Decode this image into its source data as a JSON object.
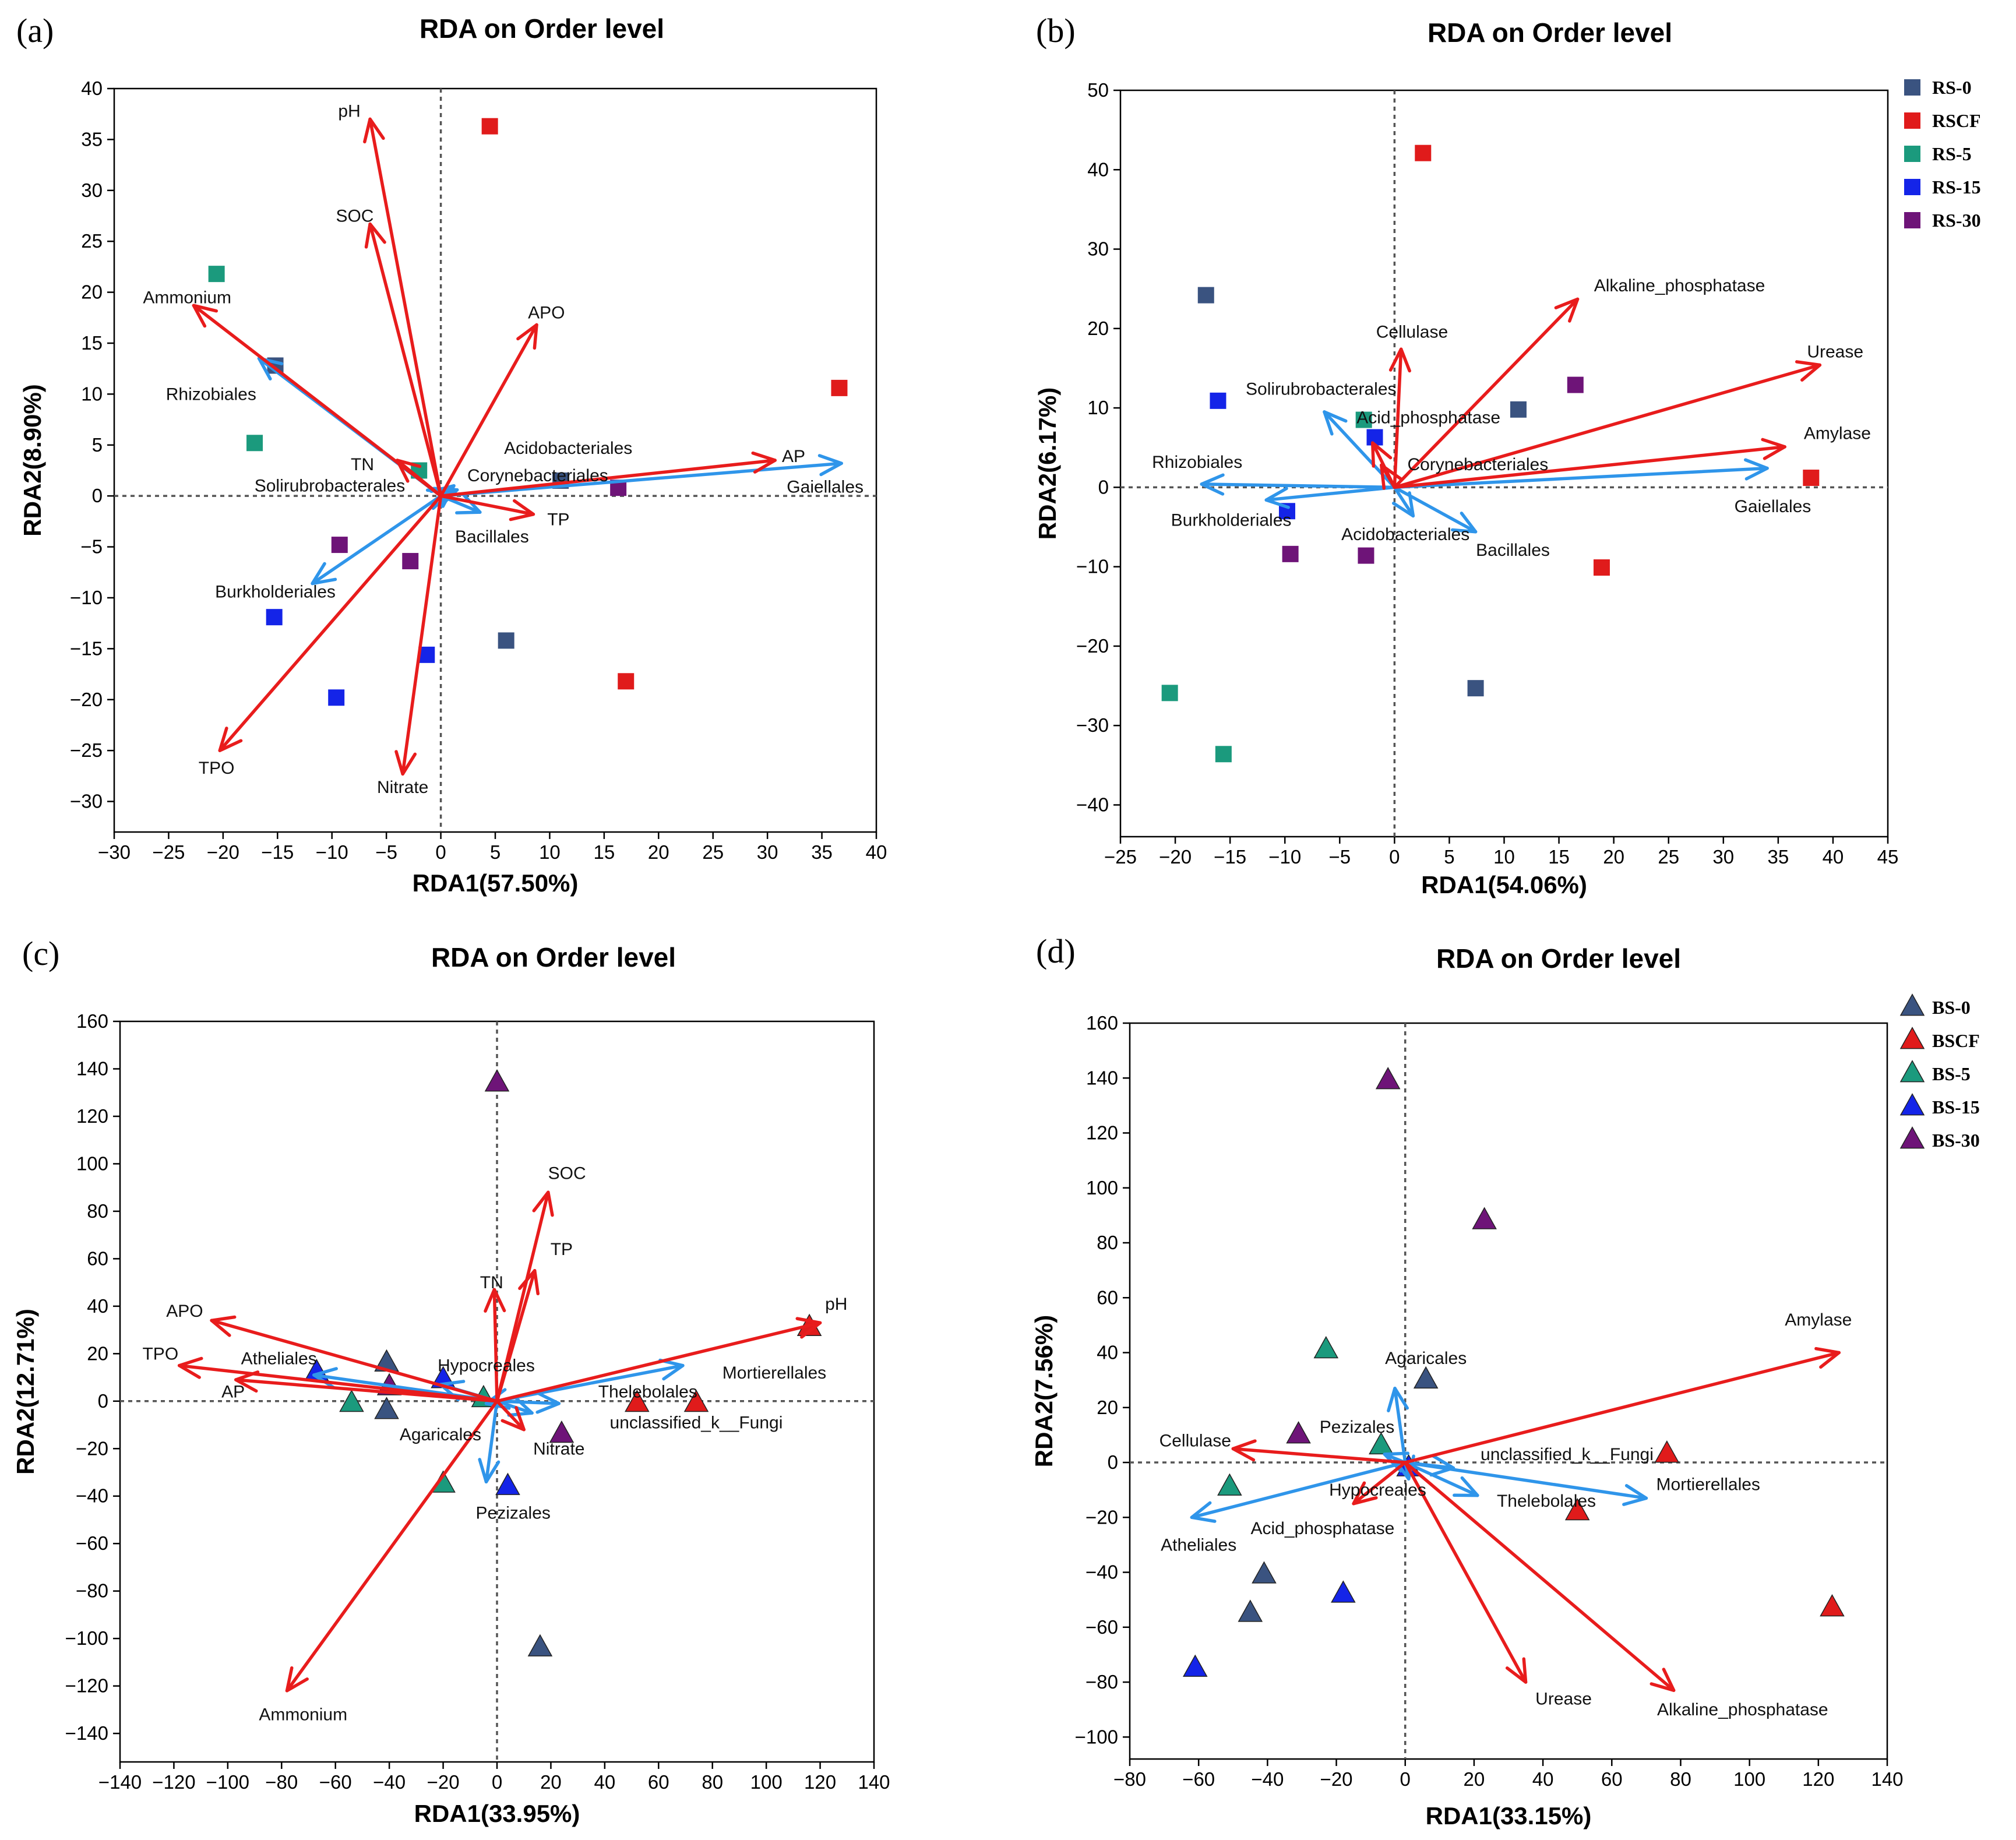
{
  "colors": {
    "env_arrow": "#e81c1c",
    "taxa_arrow": "#2f95ea",
    "g0": "#3a5380",
    "gCF": "#e01b1b",
    "g5": "#1b9a7d",
    "g15": "#1424e8",
    "g30": "#6e1478"
  },
  "chart_data": [
    {
      "type": "scatter",
      "panel_label": "(a)",
      "title": "RDA on Order level",
      "xlabel": "RDA1(57.50%)",
      "ylabel": "RDA2(8.90%)",
      "xlim": [
        -30,
        40
      ],
      "ylim": [
        -33,
        40
      ],
      "xticks": [
        -30,
        -25,
        -20,
        -15,
        -10,
        -5,
        0,
        5,
        10,
        15,
        20,
        25,
        30,
        35,
        40
      ],
      "yticks": [
        -30,
        -25,
        -20,
        -15,
        -10,
        -5,
        0,
        5,
        10,
        15,
        20,
        25,
        30,
        35,
        40
      ],
      "marker": "square",
      "points": [
        {
          "group": "RS-0",
          "x": -15.2,
          "y": 12.8
        },
        {
          "group": "RS-0",
          "x": 11.0,
          "y": 1.5
        },
        {
          "group": "RS-0",
          "x": 6.0,
          "y": -14.2
        },
        {
          "group": "RSCF",
          "x": 4.5,
          "y": 36.3
        },
        {
          "group": "RSCF",
          "x": 36.6,
          "y": 10.6
        },
        {
          "group": "RSCF",
          "x": 17.0,
          "y": -18.2
        },
        {
          "group": "RS-5",
          "x": -20.6,
          "y": 21.8
        },
        {
          "group": "RS-5",
          "x": -17.1,
          "y": 5.2
        },
        {
          "group": "RS-5",
          "x": -2.0,
          "y": 2.5
        },
        {
          "group": "RS-15",
          "x": -15.3,
          "y": -11.9
        },
        {
          "group": "RS-15",
          "x": -9.6,
          "y": -19.8
        },
        {
          "group": "RS-15",
          "x": -1.3,
          "y": -15.6
        },
        {
          "group": "RS-30",
          "x": -9.3,
          "y": -4.8
        },
        {
          "group": "RS-30",
          "x": -2.8,
          "y": -6.4
        },
        {
          "group": "RS-30",
          "x": 16.3,
          "y": 0.8
        }
      ],
      "env_vectors": [
        {
          "name": "pH",
          "x": -6.5,
          "y": 37.0
        },
        {
          "name": "SOC",
          "x": -6.5,
          "y": 26.7
        },
        {
          "name": "Ammonium",
          "x": -22.7,
          "y": 18.7
        },
        {
          "name": "APO",
          "x": 8.8,
          "y": 16.8
        },
        {
          "name": "TN",
          "x": -4.0,
          "y": 3.5
        },
        {
          "name": "AP",
          "x": 30.7,
          "y": 3.5
        },
        {
          "name": "TP",
          "x": 8.5,
          "y": -1.8
        },
        {
          "name": "TPO",
          "x": -20.3,
          "y": -25.0
        },
        {
          "name": "Nitrate",
          "x": -3.5,
          "y": -27.3
        }
      ],
      "taxa_vectors": [
        {
          "name": "Rhizobiales",
          "x": -16.7,
          "y": 13.5
        },
        {
          "name": "Gaiellales",
          "x": 36.8,
          "y": 3.2
        },
        {
          "name": "Acidobacteriales",
          "x": 1.2,
          "y": 1.0
        },
        {
          "name": "Corynebacteriales",
          "x": 1.5,
          "y": 0.6
        },
        {
          "name": "Solirubrobacterales",
          "x": 0.9,
          "y": 0.3
        },
        {
          "name": "Bacillales",
          "x": 3.6,
          "y": -1.6
        },
        {
          "name": "Burkholderiales",
          "x": -11.8,
          "y": -8.6
        }
      ],
      "labels": [
        {
          "text": "pH",
          "x": -8.4,
          "y": 37.8
        },
        {
          "text": "SOC",
          "x": -7.9,
          "y": 27.5
        },
        {
          "text": "Ammonium",
          "x": -23.3,
          "y": 19.5
        },
        {
          "text": "APO",
          "x": 9.7,
          "y": 18.0
        },
        {
          "text": "Rhizobiales",
          "x": -21.1,
          "y": 10.0
        },
        {
          "text": "TN",
          "x": -7.2,
          "y": 3.1
        },
        {
          "text": "Acidobacteriales",
          "x": 11.7,
          "y": 4.7
        },
        {
          "text": "Corynebacteriales",
          "x": 8.9,
          "y": 2.0
        },
        {
          "text": "Solirubrobacterales",
          "x": -10.2,
          "y": 1.0
        },
        {
          "text": "AP",
          "x": 32.4,
          "y": 3.9
        },
        {
          "text": "Gaiellales",
          "x": 35.3,
          "y": 0.9
        },
        {
          "text": "TP",
          "x": 10.8,
          "y": -2.3
        },
        {
          "text": "Bacillales",
          "x": 4.7,
          "y": -4.0
        },
        {
          "text": "Burkholderiales",
          "x": -15.2,
          "y": -9.4
        },
        {
          "text": "TPO",
          "x": -20.6,
          "y": -26.7
        },
        {
          "text": "Nitrate",
          "x": -3.5,
          "y": -28.6
        }
      ],
      "legend": null
    },
    {
      "type": "scatter",
      "panel_label": "(b)",
      "title": "RDA on Order level",
      "xlabel": "RDA1(54.06%)",
      "ylabel": "RDA2(6.17%)",
      "xlim": [
        -25,
        45
      ],
      "ylim": [
        -44,
        50
      ],
      "xticks": [
        -25,
        -20,
        -15,
        -10,
        -5,
        0,
        5,
        10,
        15,
        20,
        25,
        30,
        35,
        40,
        45
      ],
      "yticks": [
        -40,
        -30,
        -20,
        -10,
        0,
        10,
        20,
        30,
        40,
        50
      ],
      "marker": "square",
      "points": [
        {
          "group": "RS-0",
          "x": -17.2,
          "y": 24.2
        },
        {
          "group": "RS-0",
          "x": 11.3,
          "y": 9.8
        },
        {
          "group": "RS-0",
          "x": 7.4,
          "y": -25.3
        },
        {
          "group": "RSCF",
          "x": 2.6,
          "y": 42.1
        },
        {
          "group": "RSCF",
          "x": 38.0,
          "y": 1.2
        },
        {
          "group": "RSCF",
          "x": 18.9,
          "y": -10.1
        },
        {
          "group": "RS-5",
          "x": -20.5,
          "y": -25.9
        },
        {
          "group": "RS-5",
          "x": -15.6,
          "y": -33.6
        },
        {
          "group": "RS-5",
          "x": -2.8,
          "y": 8.5
        },
        {
          "group": "RS-15",
          "x": -16.1,
          "y": 10.9
        },
        {
          "group": "RS-15",
          "x": -9.8,
          "y": -3.0
        },
        {
          "group": "RS-15",
          "x": -1.8,
          "y": 6.3
        },
        {
          "group": "RS-30",
          "x": -9.5,
          "y": -8.4
        },
        {
          "group": "RS-30",
          "x": -2.6,
          "y": -8.6
        },
        {
          "group": "RS-30",
          "x": 16.5,
          "y": 12.9
        }
      ],
      "env_vectors": [
        {
          "name": "Alkaline_phosphatase",
          "x": 16.7,
          "y": 23.7
        },
        {
          "name": "Cellulase",
          "x": 0.6,
          "y": 17.4
        },
        {
          "name": "Urease",
          "x": 38.8,
          "y": 15.4
        },
        {
          "name": "Amylase",
          "x": 35.6,
          "y": 5.1
        },
        {
          "name": "Acid_phosphatase",
          "x": -2.0,
          "y": 5.6
        },
        {
          "name": "Corynebacteriales",
          "x": -1.2,
          "y": 2.8
        }
      ],
      "taxa_vectors": [
        {
          "name": "Solirubrobacterales",
          "x": -6.4,
          "y": 9.5
        },
        {
          "name": "Rhizobiales",
          "x": -17.6,
          "y": 0.4
        },
        {
          "name": "Burkholderiales",
          "x": -11.7,
          "y": -1.6
        },
        {
          "name": "Acidobacteriales",
          "x": 1.7,
          "y": -3.6
        },
        {
          "name": "Bacillales",
          "x": 7.4,
          "y": -5.6
        },
        {
          "name": "Gaiellales",
          "x": 34.0,
          "y": 2.4
        }
      ],
      "labels": [
        {
          "text": "Alkaline_phosphatase",
          "x": 26.0,
          "y": 25.4
        },
        {
          "text": "Cellulase",
          "x": 1.6,
          "y": 19.6
        },
        {
          "text": "Urease",
          "x": 40.2,
          "y": 17.1
        },
        {
          "text": "Solirubrobacterales",
          "x": -6.7,
          "y": 12.4
        },
        {
          "text": "Acid_phosphatase",
          "x": 3.1,
          "y": 8.8
        },
        {
          "text": "Amylase",
          "x": 40.4,
          "y": 6.8
        },
        {
          "text": "Rhizobiales",
          "x": -18.0,
          "y": 3.2
        },
        {
          "text": "Corynebacteriales",
          "x": 7.6,
          "y": 2.9
        },
        {
          "text": "Burkholderiales",
          "x": -14.9,
          "y": -4.1
        },
        {
          "text": "Acidobacteriales",
          "x": 1.0,
          "y": -5.9
        },
        {
          "text": "Bacillales",
          "x": 10.8,
          "y": -7.9
        },
        {
          "text": "Gaiellales",
          "x": 34.5,
          "y": -2.4
        }
      ],
      "legend": [
        "RS-0",
        "RSCF",
        "RS-5",
        "RS-15",
        "RS-30"
      ]
    },
    {
      "type": "scatter",
      "panel_label": "(c)",
      "title": "RDA on Order level",
      "xlabel": "RDA1(33.95%)",
      "ylabel": "RDA2(12.71%)",
      "xlim": [
        -140,
        140
      ],
      "ylim": [
        -152,
        160
      ],
      "xticks": [
        -140,
        -120,
        -100,
        -80,
        -60,
        -40,
        -20,
        0,
        20,
        40,
        60,
        80,
        100,
        120,
        140
      ],
      "yticks": [
        -140,
        -120,
        -100,
        -80,
        -60,
        -40,
        -20,
        0,
        20,
        40,
        60,
        80,
        100,
        120,
        140,
        160
      ],
      "marker": "triangle",
      "points": [
        {
          "group": "BS-0",
          "x": -41.0,
          "y": 16.0
        },
        {
          "group": "BS-0",
          "x": -41.0,
          "y": -4.0
        },
        {
          "group": "BS-0",
          "x": 16.0,
          "y": -104.0
        },
        {
          "group": "BSCF",
          "x": 52.0,
          "y": -1.0
        },
        {
          "group": "BSCF",
          "x": 74.0,
          "y": -1.0
        },
        {
          "group": "BSCF",
          "x": 116.0,
          "y": 31.0
        },
        {
          "group": "BS-5",
          "x": -54.0,
          "y": -1.0
        },
        {
          "group": "BS-5",
          "x": -20.0,
          "y": -35.0
        },
        {
          "group": "BS-5",
          "x": -5.0,
          "y": 1.0
        },
        {
          "group": "BS-15",
          "x": -67.0,
          "y": 12.0
        },
        {
          "group": "BS-15",
          "x": -20.0,
          "y": 9.0
        },
        {
          "group": "BS-15",
          "x": 4.0,
          "y": -36.0
        },
        {
          "group": "BS-30",
          "x": 0.0,
          "y": 134.0
        },
        {
          "group": "BS-30",
          "x": -40.0,
          "y": 6.0
        },
        {
          "group": "BS-30",
          "x": 24.0,
          "y": -14.0
        }
      ],
      "env_vectors": [
        {
          "name": "SOC",
          "x": 19.0,
          "y": 88.0
        },
        {
          "name": "TP",
          "x": 14.0,
          "y": 55.0
        },
        {
          "name": "TN",
          "x": -1.0,
          "y": 47.0
        },
        {
          "name": "APO",
          "x": -106.0,
          "y": 34.0
        },
        {
          "name": "TPO",
          "x": -118.0,
          "y": 15.0
        },
        {
          "name": "AP",
          "x": -97.0,
          "y": 9.0
        },
        {
          "name": "pH",
          "x": 120.0,
          "y": 33.0
        },
        {
          "name": "Nitrate",
          "x": 10.0,
          "y": -12.0
        },
        {
          "name": "Ammonium",
          "x": -78.0,
          "y": -122.0
        }
      ],
      "taxa_vectors": [
        {
          "name": "Atheliales",
          "x": -68.0,
          "y": 11.0
        },
        {
          "name": "Hypocreales",
          "x": -21.0,
          "y": 7.0
        },
        {
          "name": "Mortierellales",
          "x": 69.0,
          "y": 15.0
        },
        {
          "name": "Thelebolales",
          "x": 23.0,
          "y": -1.0
        },
        {
          "name": "unclassified_k__Fungi",
          "x": 13.0,
          "y": -5.0
        },
        {
          "name": "Agaricales",
          "x": -4.0,
          "y": -1.0
        },
        {
          "name": "Pezizales",
          "x": -4.0,
          "y": -34.0
        }
      ],
      "labels": [
        {
          "text": "SOC",
          "x": 26.0,
          "y": 96.0
        },
        {
          "text": "TP",
          "x": 24.0,
          "y": 64.0
        },
        {
          "text": "TN",
          "x": -2.0,
          "y": 50.0
        },
        {
          "text": "pH",
          "x": 126.0,
          "y": 41.0
        },
        {
          "text": "APO",
          "x": -116.0,
          "y": 38.0
        },
        {
          "text": "Hypocreales",
          "x": -4.0,
          "y": 15.0
        },
        {
          "text": "TPO",
          "x": -125.0,
          "y": 20.0
        },
        {
          "text": "Atheliales",
          "x": -81.0,
          "y": 18.0
        },
        {
          "text": "Mortierellales",
          "x": 103.0,
          "y": 12.0
        },
        {
          "text": "AP",
          "x": -98.0,
          "y": 4.0
        },
        {
          "text": "Thelebolales",
          "x": 56.0,
          "y": 4.0
        },
        {
          "text": "unclassified_k__Fungi",
          "x": 74.0,
          "y": -9.0
        },
        {
          "text": "Agaricales",
          "x": -21.0,
          "y": -14.0
        },
        {
          "text": "Nitrate",
          "x": 23.0,
          "y": -20.0
        },
        {
          "text": "Pezizales",
          "x": 6.0,
          "y": -47.0
        },
        {
          "text": "Ammonium",
          "x": -72.0,
          "y": -132.0
        }
      ],
      "legend": null
    },
    {
      "type": "scatter",
      "panel_label": "(d)",
      "title": "RDA on Order level",
      "xlabel": "RDA1(33.15%)",
      "ylabel": "RDA2(7.56%)",
      "xlim": [
        -80,
        140
      ],
      "ylim": [
        -108,
        160
      ],
      "xticks": [
        -80,
        -60,
        -40,
        -20,
        0,
        20,
        40,
        60,
        80,
        100,
        120,
        140
      ],
      "yticks": [
        -100,
        -80,
        -60,
        -40,
        -20,
        0,
        20,
        40,
        60,
        80,
        100,
        120,
        140,
        160
      ],
      "marker": "triangle",
      "points": [
        {
          "group": "BS-0",
          "x": 6.0,
          "y": 30.0
        },
        {
          "group": "BS-0",
          "x": -41.0,
          "y": -41.0
        },
        {
          "group": "BS-0",
          "x": -45.0,
          "y": -55.0
        },
        {
          "group": "BSCF",
          "x": 50.0,
          "y": -18.0
        },
        {
          "group": "BSCF",
          "x": 76.0,
          "y": 3.0
        },
        {
          "group": "BSCF",
          "x": 124.0,
          "y": -53.0
        },
        {
          "group": "BS-5",
          "x": -23.0,
          "y": 41.0
        },
        {
          "group": "BS-5",
          "x": -51.0,
          "y": -9.0
        },
        {
          "group": "BS-5",
          "x": -7.0,
          "y": 6.0
        },
        {
          "group": "BS-15",
          "x": -61.0,
          "y": -75.0
        },
        {
          "group": "BS-15",
          "x": -18.0,
          "y": -48.0
        },
        {
          "group": "BS-15",
          "x": 1.0,
          "y": -2.0
        },
        {
          "group": "BS-30",
          "x": -5.0,
          "y": 139.0
        },
        {
          "group": "BS-30",
          "x": 23.0,
          "y": 88.0
        },
        {
          "group": "BS-30",
          "x": -31.0,
          "y": 10.0
        }
      ],
      "env_vectors": [
        {
          "name": "Amylase",
          "x": 126.0,
          "y": 40.0
        },
        {
          "name": "Cellulase",
          "x": -50.0,
          "y": 5.0
        },
        {
          "name": "Acid_phosphatase",
          "x": -15.0,
          "y": -15.0
        },
        {
          "name": "Urease",
          "x": 35.0,
          "y": -80.0
        },
        {
          "name": "Alkaline_phosphatase",
          "x": 78.0,
          "y": -83.0
        }
      ],
      "taxa_vectors": [
        {
          "name": "Agaricales",
          "x": -3.0,
          "y": 27.0
        },
        {
          "name": "Pezizales",
          "x": -6.0,
          "y": 3.0
        },
        {
          "name": "unclassified_k__Fungi",
          "x": 14.0,
          "y": -2.0
        },
        {
          "name": "Hypocreales",
          "x": 1.0,
          "y": -6.0
        },
        {
          "name": "Thelebolales",
          "x": 21.0,
          "y": -12.0
        },
        {
          "name": "Mortierellales",
          "x": 70.0,
          "y": -13.0
        },
        {
          "name": "Atheliales",
          "x": -62.0,
          "y": -20.0
        }
      ],
      "labels": [
        {
          "text": "Amylase",
          "x": 120.0,
          "y": 52.0
        },
        {
          "text": "Agaricales",
          "x": 6.0,
          "y": 38.0
        },
        {
          "text": "Pezizales",
          "x": -14.0,
          "y": 13.0
        },
        {
          "text": "Cellulase",
          "x": -61.0,
          "y": 8.0
        },
        {
          "text": "unclassified_k__Fungi",
          "x": 47.0,
          "y": 3.0
        },
        {
          "text": "Hypocreales",
          "x": -8.0,
          "y": -10.0
        },
        {
          "text": "Mortierellales",
          "x": 88.0,
          "y": -8.0
        },
        {
          "text": "Thelebolales",
          "x": 41.0,
          "y": -14.0
        },
        {
          "text": "Acid_phosphatase",
          "x": -24.0,
          "y": -24.0
        },
        {
          "text": "Atheliales",
          "x": -60.0,
          "y": -30.0
        },
        {
          "text": "Urease",
          "x": 46.0,
          "y": -86.0
        },
        {
          "text": "Alkaline_phosphatase",
          "x": 98.0,
          "y": -90.0
        }
      ],
      "legend": [
        "BS-0",
        "BSCF",
        "BS-5",
        "BS-15",
        "BS-30"
      ]
    }
  ]
}
